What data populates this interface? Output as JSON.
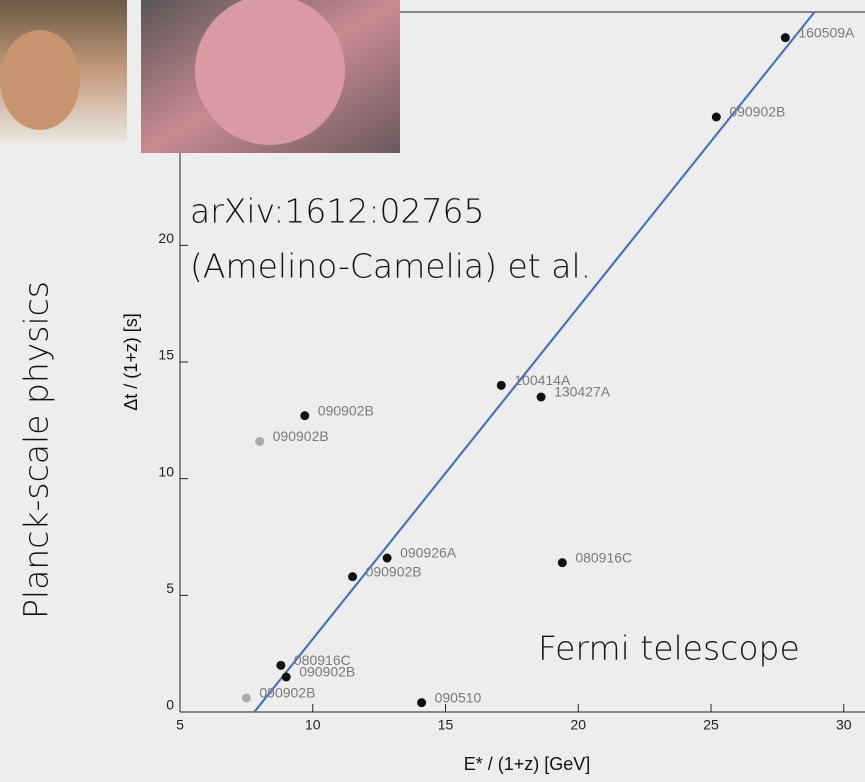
{
  "chart_data": {
    "type": "scatter",
    "side_title": "Planck-scale physics",
    "annotations": [
      "arXiv:1612:02765",
      "(Amelino-Camelia) et al.",
      "Fermi telescope"
    ],
    "x_label": "E* / (1+z)   [GeV]",
    "y_label": "Δt / (1+z)    [s]",
    "x": [
      27.8,
      25.2,
      17.1,
      18.6,
      9.7,
      8.0,
      12.8,
      19.4,
      11.5,
      8.8,
      9.0,
      7.5,
      14.1
    ],
    "y": [
      28.9,
      25.5,
      14.0,
      13.5,
      12.7,
      11.6,
      6.6,
      6.4,
      5.8,
      2.0,
      1.5,
      0.6,
      0.4
    ],
    "point_labels": [
      "160509A",
      "090902B",
      "100414A",
      "130427A",
      "090902B",
      "090902B",
      "090926A",
      "080916C",
      "090902B",
      "080916C",
      "090902B",
      "090902B",
      "090510"
    ],
    "point_colors": [
      "#111111",
      "#111111",
      "#111111",
      "#111111",
      "#111111",
      "#aaaaaa",
      "#111111",
      "#111111",
      "#111111",
      "#111111",
      "#111111",
      "#aaaaaa",
      "#111111"
    ],
    "fit": {
      "x": [
        7.8,
        28.9
      ],
      "y": [
        0,
        30
      ],
      "color": "#4f73b0"
    },
    "xlim": [
      5,
      30.8
    ],
    "ylim": [
      0,
      30
    ],
    "xticks": [
      5,
      10,
      15,
      20,
      25,
      30
    ],
    "yticks": [
      0,
      5,
      10,
      15,
      20
    ]
  }
}
